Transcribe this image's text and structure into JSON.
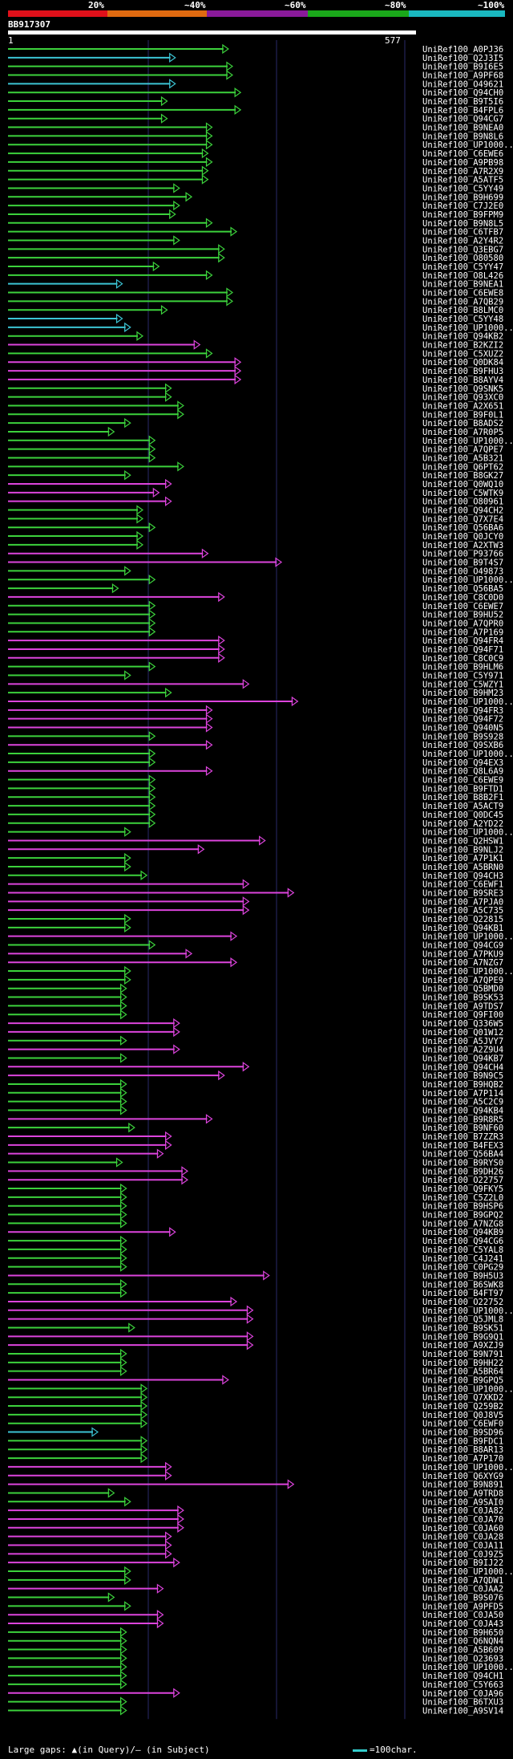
{
  "scale": {
    "labels": [
      "20%",
      "~40%",
      "~60%",
      "~80%",
      "~100%"
    ],
    "colors": [
      "#e0101a",
      "#e06a10",
      "#8a1a9a",
      "#1aa81a",
      "#1ab8c0"
    ]
  },
  "query": {
    "id": "BB917307",
    "start": "1",
    "end": "577"
  },
  "legend": {
    "gaps": "Large gaps: ▲(in Query)/– (in Subject)",
    "chars": "=100char."
  },
  "colors": {
    "green": "#3cd23c",
    "magenta": "#dd44dd",
    "cyan": "#3cc4d4"
  },
  "hits": [
    {
      "id": "UniRef100_A0PJ36",
      "color": "green",
      "end": 0.54
    },
    {
      "id": "UniRef100_Q2J3I5",
      "color": "cyan",
      "end": 0.41
    },
    {
      "id": "UniRef100_B9I6E5",
      "color": "green",
      "end": 0.55
    },
    {
      "id": "UniRef100_A9PF68",
      "color": "green",
      "end": 0.55
    },
    {
      "id": "UniRef100_O49621",
      "color": "cyan",
      "end": 0.41
    },
    {
      "id": "UniRef100_Q94CH0",
      "color": "green",
      "end": 0.57
    },
    {
      "id": "UniRef100_B9T5I6",
      "color": "green",
      "end": 0.39
    },
    {
      "id": "UniRef100_B4FPL6",
      "color": "green",
      "end": 0.57
    },
    {
      "id": "UniRef100_Q94CG7",
      "color": "green",
      "end": 0.39
    },
    {
      "id": "UniRef100_B9NEA0",
      "color": "green",
      "end": 0.5
    },
    {
      "id": "UniRef100_B9N8L6",
      "color": "green",
      "end": 0.5
    },
    {
      "id": "UniRef100_UP1000...",
      "color": "green",
      "end": 0.5
    },
    {
      "id": "UniRef100_C6EWE6",
      "color": "green",
      "end": 0.49
    },
    {
      "id": "UniRef100_A9PB98",
      "color": "green",
      "end": 0.5
    },
    {
      "id": "UniRef100_A7R2X9",
      "color": "green",
      "end": 0.49
    },
    {
      "id": "UniRef100_A5ATF5",
      "color": "green",
      "end": 0.49
    },
    {
      "id": "UniRef100_C5YY49",
      "color": "green",
      "end": 0.42
    },
    {
      "id": "UniRef100_B9H699",
      "color": "green",
      "end": 0.45
    },
    {
      "id": "UniRef100_C7J2E0",
      "color": "green",
      "end": 0.42
    },
    {
      "id": "UniRef100_B9FPM9",
      "color": "green",
      "end": 0.41
    },
    {
      "id": "UniRef100_B9N8L5",
      "color": "green",
      "end": 0.5
    },
    {
      "id": "UniRef100_C6TFB7",
      "color": "green",
      "end": 0.56
    },
    {
      "id": "UniRef100_A2Y4R2",
      "color": "green",
      "end": 0.42
    },
    {
      "id": "UniRef100_Q3EBG7",
      "color": "green",
      "end": 0.53
    },
    {
      "id": "UniRef100_O80580",
      "color": "green",
      "end": 0.53
    },
    {
      "id": "UniRef100_C5YY47",
      "color": "green",
      "end": 0.37
    },
    {
      "id": "UniRef100_O8L426",
      "color": "green",
      "end": 0.5
    },
    {
      "id": "UniRef100_B9NEA1",
      "color": "cyan",
      "end": 0.28
    },
    {
      "id": "UniRef100_C6EWE8",
      "color": "green",
      "end": 0.55
    },
    {
      "id": "UniRef100_A7QB29",
      "color": "green",
      "end": 0.55
    },
    {
      "id": "UniRef100_B8LMC0",
      "color": "green",
      "end": 0.39
    },
    {
      "id": "UniRef100_C5YY48",
      "color": "cyan",
      "end": 0.28
    },
    {
      "id": "UniRef100_UP1000...",
      "color": "cyan",
      "end": 0.3
    },
    {
      "id": "UniRef100_Q94KB2",
      "color": "green",
      "end": 0.33
    },
    {
      "id": "UniRef100_B2KZI2",
      "color": "magenta",
      "end": 0.47
    },
    {
      "id": "UniRef100_C5XUZ2",
      "color": "green",
      "end": 0.5
    },
    {
      "id": "UniRef100_Q0DK84",
      "color": "magenta",
      "end": 0.57
    },
    {
      "id": "UniRef100_B9FHU3",
      "color": "magenta",
      "end": 0.57
    },
    {
      "id": "UniRef100_B8AYV4",
      "color": "magenta",
      "end": 0.57
    },
    {
      "id": "UniRef100_Q9SNK5",
      "color": "green",
      "end": 0.4
    },
    {
      "id": "UniRef100_Q93XC0",
      "color": "green",
      "end": 0.4
    },
    {
      "id": "UniRef100_A2X651",
      "color": "green",
      "end": 0.43
    },
    {
      "id": "UniRef100_B9F0L1",
      "color": "green",
      "end": 0.43
    },
    {
      "id": "UniRef100_B8ADS2",
      "color": "green",
      "end": 0.3
    },
    {
      "id": "UniRef100_A7R0P5",
      "color": "green",
      "end": 0.26
    },
    {
      "id": "UniRef100_UP1000...",
      "color": "green",
      "end": 0.36
    },
    {
      "id": "UniRef100_A7QPE7",
      "color": "green",
      "end": 0.36
    },
    {
      "id": "UniRef100_A5B321",
      "color": "green",
      "end": 0.36
    },
    {
      "id": "UniRef100_Q6PT62",
      "color": "green",
      "end": 0.43
    },
    {
      "id": "UniRef100_B8GK27",
      "color": "green",
      "end": 0.3
    },
    {
      "id": "UniRef100_Q0WQ10",
      "color": "magenta",
      "end": 0.4
    },
    {
      "id": "UniRef100_C5WTK9",
      "color": "magenta",
      "end": 0.37
    },
    {
      "id": "UniRef100_O80961",
      "color": "magenta",
      "end": 0.4
    },
    {
      "id": "UniRef100_Q94CH2",
      "color": "green",
      "end": 0.33
    },
    {
      "id": "UniRef100_Q7X7E4",
      "color": "green",
      "end": 0.33
    },
    {
      "id": "UniRef100_Q56BA6",
      "color": "green",
      "end": 0.36
    },
    {
      "id": "UniRef100_Q0JCY0",
      "color": "green",
      "end": 0.33
    },
    {
      "id": "UniRef100_A2XTW3",
      "color": "green",
      "end": 0.33
    },
    {
      "id": "UniRef100_P93766",
      "color": "magenta",
      "end": 0.49
    },
    {
      "id": "UniRef100_B9T4S7",
      "color": "magenta",
      "end": 0.67
    },
    {
      "id": "UniRef100_O49873",
      "color": "green",
      "end": 0.3
    },
    {
      "id": "UniRef100_UP1000...",
      "color": "green",
      "end": 0.36
    },
    {
      "id": "UniRef100_Q56BA5",
      "color": "green",
      "end": 0.27
    },
    {
      "id": "UniRef100_C8C0D0",
      "color": "magenta",
      "end": 0.53
    },
    {
      "id": "UniRef100_C6EWE7",
      "color": "green",
      "end": 0.36
    },
    {
      "id": "UniRef100_B9HU52",
      "color": "green",
      "end": 0.36
    },
    {
      "id": "UniRef100_A7QPR0",
      "color": "green",
      "end": 0.36
    },
    {
      "id": "UniRef100_A7P169",
      "color": "green",
      "end": 0.36
    },
    {
      "id": "UniRef100_Q94FR4",
      "color": "magenta",
      "end": 0.53
    },
    {
      "id": "UniRef100_Q94F71",
      "color": "magenta",
      "end": 0.53
    },
    {
      "id": "UniRef100_C8C0C9",
      "color": "magenta",
      "end": 0.53
    },
    {
      "id": "UniRef100_B9HLM6",
      "color": "green",
      "end": 0.36
    },
    {
      "id": "UniRef100_C5Y971",
      "color": "green",
      "end": 0.3
    },
    {
      "id": "UniRef100_C5WZY1",
      "color": "magenta",
      "end": 0.59
    },
    {
      "id": "UniRef100_B9HM23",
      "color": "green",
      "end": 0.4
    },
    {
      "id": "UniRef100_UP1000...",
      "color": "magenta",
      "end": 0.71
    },
    {
      "id": "UniRef100_Q94FR3",
      "color": "magenta",
      "end": 0.5
    },
    {
      "id": "UniRef100_Q94F72",
      "color": "magenta",
      "end": 0.5
    },
    {
      "id": "UniRef100_Q940N5",
      "color": "magenta",
      "end": 0.5
    },
    {
      "id": "UniRef100_B9S928",
      "color": "green",
      "end": 0.36
    },
    {
      "id": "UniRef100_Q9SXB6",
      "color": "magenta",
      "end": 0.5
    },
    {
      "id": "UniRef100_UP1000...",
      "color": "green",
      "end": 0.36
    },
    {
      "id": "UniRef100_Q94EX3",
      "color": "green",
      "end": 0.36
    },
    {
      "id": "UniRef100_Q8L6A9",
      "color": "magenta",
      "end": 0.5
    },
    {
      "id": "UniRef100_C6EWE9",
      "color": "green",
      "end": 0.36
    },
    {
      "id": "UniRef100_B9FTD1",
      "color": "green",
      "end": 0.36
    },
    {
      "id": "UniRef100_B8B2F1",
      "color": "green",
      "end": 0.36
    },
    {
      "id": "UniRef100_A5ACT9",
      "color": "green",
      "end": 0.36
    },
    {
      "id": "UniRef100_Q0DC45",
      "color": "green",
      "end": 0.36
    },
    {
      "id": "UniRef100_A2YD22",
      "color": "green",
      "end": 0.36
    },
    {
      "id": "UniRef100_UP1000...",
      "color": "green",
      "end": 0.3
    },
    {
      "id": "UniRef100_Q2HSW1",
      "color": "magenta",
      "end": 0.63
    },
    {
      "id": "UniRef100_B9NLJ2",
      "color": "magenta",
      "end": 0.48
    },
    {
      "id": "UniRef100_A7P1K1",
      "color": "green",
      "end": 0.3
    },
    {
      "id": "UniRef100_A5BRN0",
      "color": "green",
      "end": 0.3
    },
    {
      "id": "UniRef100_Q94CH3",
      "color": "green",
      "end": 0.34
    },
    {
      "id": "UniRef100_C6EWF1",
      "color": "magenta",
      "end": 0.59
    },
    {
      "id": "UniRef100_B9SRE3",
      "color": "magenta",
      "end": 0.7
    },
    {
      "id": "UniRef100_A7PJA0",
      "color": "magenta",
      "end": 0.59
    },
    {
      "id": "UniRef100_A5C735",
      "color": "magenta",
      "end": 0.59
    },
    {
      "id": "UniRef100_Q22815",
      "color": "green",
      "end": 0.3
    },
    {
      "id": "UniRef100_Q94KB1",
      "color": "green",
      "end": 0.3
    },
    {
      "id": "UniRef100_UP1000...",
      "color": "magenta",
      "end": 0.56
    },
    {
      "id": "UniRef100_Q94CG9",
      "color": "green",
      "end": 0.36
    },
    {
      "id": "UniRef100_A7PKU9",
      "color": "magenta",
      "end": 0.45
    },
    {
      "id": "UniRef100_A7NZG7",
      "color": "magenta",
      "end": 0.56
    },
    {
      "id": "UniRef100_UP1000...",
      "color": "green",
      "end": 0.3
    },
    {
      "id": "UniRef100_A7QPE9",
      "color": "green",
      "end": 0.3
    },
    {
      "id": "UniRef100_Q5BMD0",
      "color": "green",
      "end": 0.29
    },
    {
      "id": "UniRef100_B9SK53",
      "color": "green",
      "end": 0.29
    },
    {
      "id": "UniRef100_A9TDS7",
      "color": "green",
      "end": 0.29
    },
    {
      "id": "UniRef100_Q9FI00",
      "color": "green",
      "end": 0.29
    },
    {
      "id": "UniRef100_Q336W5",
      "color": "magenta",
      "end": 0.42
    },
    {
      "id": "UniRef100_Q01W12",
      "color": "magenta",
      "end": 0.42
    },
    {
      "id": "UniRef100_A5JVY7",
      "color": "green",
      "end": 0.29
    },
    {
      "id": "UniRef100_A2Z9U4",
      "color": "magenta",
      "end": 0.42
    },
    {
      "id": "UniRef100_Q94KB7",
      "color": "green",
      "end": 0.29
    },
    {
      "id": "UniRef100_Q94CH4",
      "color": "magenta",
      "end": 0.59
    },
    {
      "id": "UniRef100_B9N9C5",
      "color": "magenta",
      "end": 0.53
    },
    {
      "id": "UniRef100_B9HQB2",
      "color": "green",
      "end": 0.29
    },
    {
      "id": "UniRef100_A7P114",
      "color": "green",
      "end": 0.29
    },
    {
      "id": "UniRef100_A5C2C9",
      "color": "green",
      "end": 0.29
    },
    {
      "id": "UniRef100_Q94KB4",
      "color": "green",
      "end": 0.29
    },
    {
      "id": "UniRef100_B9R8R5",
      "color": "magenta",
      "end": 0.5
    },
    {
      "id": "UniRef100_B9NF60",
      "color": "green",
      "end": 0.31
    },
    {
      "id": "UniRef100_B7ZZR3",
      "color": "magenta",
      "end": 0.4
    },
    {
      "id": "UniRef100_B4FEX3",
      "color": "magenta",
      "end": 0.4
    },
    {
      "id": "UniRef100_Q56BA4",
      "color": "magenta",
      "end": 0.38
    },
    {
      "id": "UniRef100_B9RYS0",
      "color": "green",
      "end": 0.28
    },
    {
      "id": "UniRef100_B9DH26",
      "color": "magenta",
      "end": 0.44
    },
    {
      "id": "UniRef100_O22757",
      "color": "magenta",
      "end": 0.44
    },
    {
      "id": "UniRef100_Q9FKY5",
      "color": "green",
      "end": 0.29
    },
    {
      "id": "UniRef100_C5Z2L0",
      "color": "green",
      "end": 0.29
    },
    {
      "id": "UniRef100_B9HSP6",
      "color": "green",
      "end": 0.29
    },
    {
      "id": "UniRef100_B9GPQ2",
      "color": "green",
      "end": 0.29
    },
    {
      "id": "UniRef100_A7NZG8",
      "color": "green",
      "end": 0.29
    },
    {
      "id": "UniRef100_Q94KB9",
      "color": "magenta",
      "end": 0.41
    },
    {
      "id": "UniRef100_Q94CG6",
      "color": "green",
      "end": 0.29
    },
    {
      "id": "UniRef100_C5YAL8",
      "color": "green",
      "end": 0.29
    },
    {
      "id": "UniRef100_C4J241",
      "color": "green",
      "end": 0.29
    },
    {
      "id": "UniRef100_C0PG29",
      "color": "green",
      "end": 0.29
    },
    {
      "id": "UniRef100_B9H5U3",
      "color": "magenta",
      "end": 0.64
    },
    {
      "id": "UniRef100_B6SWK8",
      "color": "green",
      "end": 0.29
    },
    {
      "id": "UniRef100_B4FT97",
      "color": "green",
      "end": 0.29
    },
    {
      "id": "UniRef100_O22752",
      "color": "magenta",
      "end": 0.56
    },
    {
      "id": "UniRef100_UP1000...",
      "color": "magenta",
      "end": 0.6
    },
    {
      "id": "UniRef100_Q5JML8",
      "color": "magenta",
      "end": 0.6
    },
    {
      "id": "UniRef100_B9SK51",
      "color": "green",
      "end": 0.31
    },
    {
      "id": "UniRef100_B9G9Q1",
      "color": "magenta",
      "end": 0.6
    },
    {
      "id": "UniRef100_A9XZJ9",
      "color": "magenta",
      "end": 0.6
    },
    {
      "id": "UniRef100_B9N791",
      "color": "green",
      "end": 0.29
    },
    {
      "id": "UniRef100_B9HH22",
      "color": "green",
      "end": 0.29
    },
    {
      "id": "UniRef100_A5BR64",
      "color": "green",
      "end": 0.29
    },
    {
      "id": "UniRef100_B9GPQ5",
      "color": "magenta",
      "end": 0.54
    },
    {
      "id": "UniRef100_UP1000...",
      "color": "green",
      "end": 0.34
    },
    {
      "id": "UniRef100_Q7XKD2",
      "color": "green",
      "end": 0.34
    },
    {
      "id": "UniRef100_Q259B2",
      "color": "green",
      "end": 0.34
    },
    {
      "id": "UniRef100_Q0J8V5",
      "color": "green",
      "end": 0.34
    },
    {
      "id": "UniRef100_C6EWF0",
      "color": "green",
      "end": 0.34
    },
    {
      "id": "UniRef100_B9SD96",
      "color": "cyan",
      "end": 0.22
    },
    {
      "id": "UniRef100_B9FDC1",
      "color": "green",
      "end": 0.34
    },
    {
      "id": "UniRef100_B8AR13",
      "color": "green",
      "end": 0.34
    },
    {
      "id": "UniRef100_A7P170",
      "color": "green",
      "end": 0.34
    },
    {
      "id": "UniRef100_UP1000...",
      "color": "magenta",
      "end": 0.4
    },
    {
      "id": "UniRef100_Q6XYG9",
      "color": "magenta",
      "end": 0.4
    },
    {
      "id": "UniRef100_B9N891",
      "color": "magenta",
      "end": 0.7
    },
    {
      "id": "UniRef100_A9TRD8",
      "color": "green",
      "end": 0.26
    },
    {
      "id": "UniRef100_A9SAI0",
      "color": "green",
      "end": 0.3
    },
    {
      "id": "UniRef100_C0JA82",
      "color": "magenta",
      "end": 0.43
    },
    {
      "id": "UniRef100_C0JA70",
      "color": "magenta",
      "end": 0.43
    },
    {
      "id": "UniRef100_C0JA60",
      "color": "magenta",
      "end": 0.43
    },
    {
      "id": "UniRef100_C0JA28",
      "color": "magenta",
      "end": 0.4
    },
    {
      "id": "UniRef100_C0JA11",
      "color": "magenta",
      "end": 0.4
    },
    {
      "id": "UniRef100_C0J9Z5",
      "color": "magenta",
      "end": 0.4
    },
    {
      "id": "UniRef100_B9IJ22",
      "color": "magenta",
      "end": 0.42
    },
    {
      "id": "UniRef100_UP1000...",
      "color": "green",
      "end": 0.3
    },
    {
      "id": "UniRef100_A7QDW1",
      "color": "green",
      "end": 0.3
    },
    {
      "id": "UniRef100_C0JAA2",
      "color": "magenta",
      "end": 0.38
    },
    {
      "id": "UniRef100_B9S076",
      "color": "green",
      "end": 0.26
    },
    {
      "id": "UniRef100_A9PFD5",
      "color": "green",
      "end": 0.3
    },
    {
      "id": "UniRef100_C0JA50",
      "color": "magenta",
      "end": 0.38
    },
    {
      "id": "UniRef100_C0JA43",
      "color": "magenta",
      "end": 0.38
    },
    {
      "id": "UniRef100_B9H650",
      "color": "green",
      "end": 0.29
    },
    {
      "id": "UniRef100_Q6NQN4",
      "color": "green",
      "end": 0.29
    },
    {
      "id": "UniRef100_A5B609",
      "color": "green",
      "end": 0.29
    },
    {
      "id": "UniRef100_O23693",
      "color": "green",
      "end": 0.29
    },
    {
      "id": "UniRef100_UP1000...",
      "color": "green",
      "end": 0.29
    },
    {
      "id": "UniRef100_Q94CH1",
      "color": "green",
      "end": 0.29
    },
    {
      "id": "UniRef100_C5Y663",
      "color": "green",
      "end": 0.29
    },
    {
      "id": "UniRef100_C0JA96",
      "color": "magenta",
      "end": 0.42
    },
    {
      "id": "UniRef100_B6TXU3",
      "color": "green",
      "end": 0.29
    },
    {
      "id": "UniRef100_A9SV14",
      "color": "green",
      "end": 0.29
    }
  ]
}
